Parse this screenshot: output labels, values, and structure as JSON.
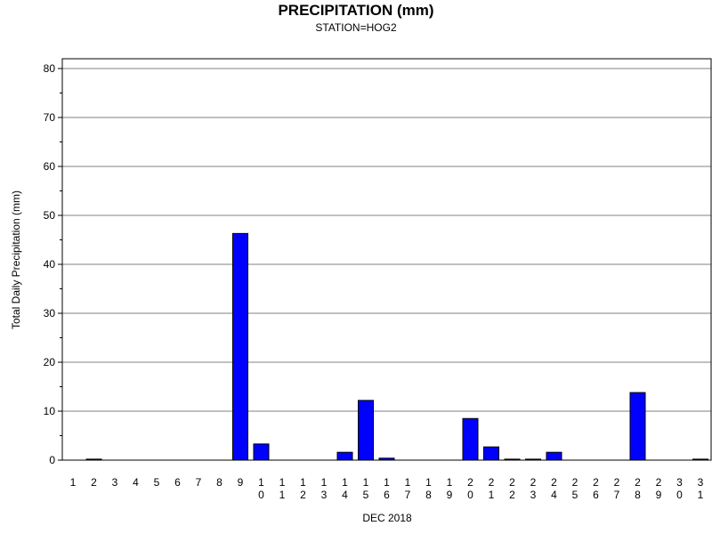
{
  "chart_data": {
    "type": "bar",
    "title": "PRECIPITATION (mm)",
    "subtitle": "STATION=HOG2",
    "xlabel": "DEC 2018",
    "ylabel": "Total Daily Precipitation (mm)",
    "ylim": [
      0,
      80
    ],
    "yticks": [
      0,
      10,
      20,
      30,
      40,
      50,
      60,
      70,
      80
    ],
    "grid": true,
    "bar_color": "#0000ff",
    "categories": [
      "1",
      "2",
      "3",
      "4",
      "5",
      "6",
      "7",
      "8",
      "9",
      "10",
      "11",
      "12",
      "13",
      "14",
      "15",
      "16",
      "17",
      "18",
      "19",
      "20",
      "21",
      "22",
      "23",
      "24",
      "25",
      "26",
      "27",
      "28",
      "29",
      "30",
      "31"
    ],
    "values": [
      0,
      0.2,
      0,
      0,
      0,
      0,
      0,
      0,
      46.3,
      3.3,
      0,
      0,
      0,
      1.6,
      12.2,
      0.4,
      0,
      0,
      0,
      8.5,
      2.7,
      0.2,
      0.2,
      1.6,
      0,
      0,
      0,
      13.8,
      0,
      0,
      0.2
    ]
  }
}
